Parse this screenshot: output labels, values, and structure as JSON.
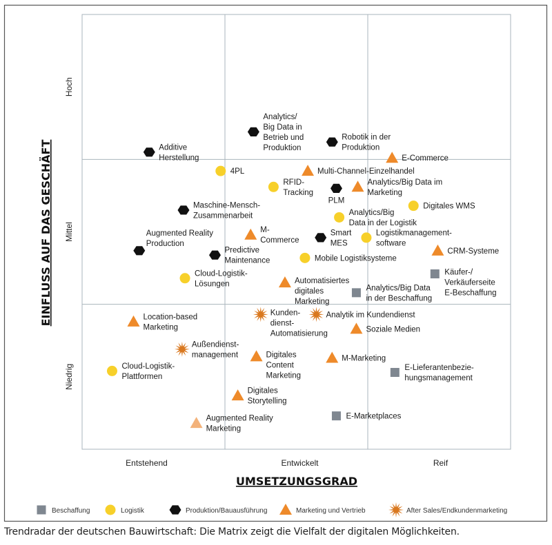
{
  "chart_data": {
    "type": "scatter",
    "xlabel": "UMSETZUNGSGRAD",
    "ylabel": "EINFLUSS AUF DAS GESCHÄFT",
    "xlim": [
      0,
      3
    ],
    "ylim": [
      0,
      3
    ],
    "x_ticks": [
      "Entstehend",
      "Entwickelt",
      "Reif"
    ],
    "y_ticks": [
      "Niedrig",
      "Mittel",
      "Hoch"
    ],
    "grid": true,
    "legend_placement": "bottom",
    "series": [
      {
        "name": "Beschaffung",
        "marker": "square",
        "color": "#7f8790",
        "points": [
          {
            "label": "Analytics/Big Data\nin der Beschaffung",
            "x": 1.92,
            "y": 1.08
          },
          {
            "label": "Käufer-/\nVerkäuferseite\nE-Beschaffung",
            "x": 2.47,
            "y": 1.21
          },
          {
            "label": "E-Lieferantenbezie-\nhungsmanagement",
            "x": 2.19,
            "y": 0.53
          },
          {
            "label": "E-Marketplaces",
            "x": 1.78,
            "y": 0.23
          }
        ]
      },
      {
        "name": "Logistik",
        "marker": "circle",
        "color": "#f7d02a",
        "points": [
          {
            "label": "4PL",
            "x": 0.97,
            "y": 1.92
          },
          {
            "label": "RFID-\nTracking",
            "x": 1.34,
            "y": 1.81
          },
          {
            "label": "Digitales WMS",
            "x": 2.32,
            "y": 1.68
          },
          {
            "label": "Analytics/Big\nData in der Logistik",
            "x": 1.8,
            "y": 1.6
          },
          {
            "label": "Logistikmanagement-\nsoftware",
            "x": 1.99,
            "y": 1.46
          },
          {
            "label": "Mobile Logistiksysteme",
            "x": 1.56,
            "y": 1.32
          },
          {
            "label": "Cloud-Logistik-\nLösungen",
            "x": 0.72,
            "y": 1.18
          },
          {
            "label": "Cloud-Logistik-\nPlattformen",
            "x": 0.21,
            "y": 0.54
          }
        ]
      },
      {
        "name": "Produktion/Bauausführung",
        "marker": "hexagon",
        "color": "#111111",
        "points": [
          {
            "label": "Additive\nHerstellung",
            "x": 0.47,
            "y": 2.05
          },
          {
            "label": "Analytics/\nBig Data in\nBetrieb und\nProduktion",
            "x": 1.2,
            "y": 2.19
          },
          {
            "label": "Robotik in der\nProduktion",
            "x": 1.75,
            "y": 2.12
          },
          {
            "label": "PLM",
            "x": 1.78,
            "y": 1.8
          },
          {
            "label": "Maschine-Mensch-\nZusammenarbeit",
            "x": 0.71,
            "y": 1.65
          },
          {
            "label": "Augmented Reality\nProduction",
            "x": 0.4,
            "y": 1.37
          },
          {
            "label": "Predictive\nMaintenance",
            "x": 0.93,
            "y": 1.34
          },
          {
            "label": "Smart\nMES",
            "x": 1.67,
            "y": 1.46
          }
        ]
      },
      {
        "name": "Marketing und Vertrieb",
        "marker": "triangle",
        "color": "#ee8a2a",
        "points": [
          {
            "label": "E-Commerce",
            "x": 2.17,
            "y": 2.01
          },
          {
            "label": "Multi-Channel-Einzelhandel",
            "x": 1.58,
            "y": 1.92
          },
          {
            "label": "Analytics/Big Data im\nMarketing",
            "x": 1.93,
            "y": 1.81
          },
          {
            "label": "M-\nCommerce",
            "x": 1.18,
            "y": 1.48
          },
          {
            "label": "CRM-Systeme",
            "x": 2.49,
            "y": 1.37
          },
          {
            "label": "Automatisiertes\ndigitales\nMarketing",
            "x": 1.42,
            "y": 1.15
          },
          {
            "label": "Location-based\nMarketing",
            "x": 0.36,
            "y": 0.88
          },
          {
            "label": "Soziale Medien",
            "x": 1.92,
            "y": 0.83
          },
          {
            "label": "M-Marketing",
            "x": 1.75,
            "y": 0.63
          },
          {
            "label": "Digitales\nContent\nMarketing",
            "x": 1.22,
            "y": 0.64
          },
          {
            "label": "Digitales\nStorytelling",
            "x": 1.09,
            "y": 0.37
          },
          {
            "label": "Augmented Reality\nMarketing",
            "x": 0.8,
            "y": 0.18,
            "color": "#f3b27a"
          }
        ]
      },
      {
        "name": "After Sales/Endkundenmarketing",
        "marker": "star",
        "color": "#d9781f",
        "points": [
          {
            "label": "Kunden-\ndienst-\nAutomatisierung",
            "x": 1.25,
            "y": 0.93
          },
          {
            "label": "Analytik im Kundendienst",
            "x": 1.64,
            "y": 0.93
          },
          {
            "label": "Außendienst-\nmanagement",
            "x": 0.7,
            "y": 0.69
          }
        ]
      }
    ]
  },
  "caption": "Trendradar der deutschen Bauwirtschaft: Die Matrix zeigt die Vielfalt der digitalen Möglichkeiten."
}
